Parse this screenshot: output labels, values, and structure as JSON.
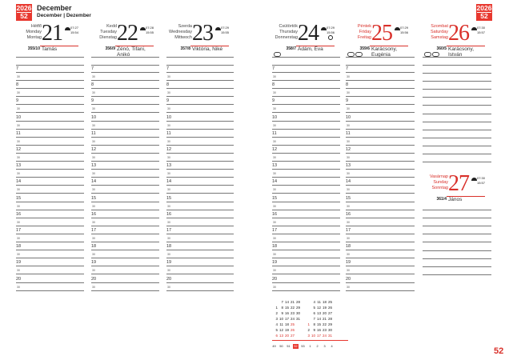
{
  "header": {
    "year": "2026",
    "week": "52",
    "month": "December",
    "month_translations": "December | Dezember"
  },
  "days": [
    {
      "names": [
        "Hétfő",
        "Monday",
        "Montag"
      ],
      "num": "21",
      "sunrise": "07:27",
      "sunset": "15:54",
      "daycount": "355/10",
      "nameday": "Tamás",
      "red": false
    },
    {
      "names": [
        "Kedd",
        "Tuesday",
        "Dienstag"
      ],
      "num": "22",
      "sunrise": "07:28",
      "sunset": "15:55",
      "daycount": "356/9",
      "nameday": "Zénó, Tifani, Anikó",
      "red": false
    },
    {
      "names": [
        "Szerda",
        "Wednesday",
        "Mittwoch"
      ],
      "num": "23",
      "sunrise": "07:29",
      "sunset": "15:55",
      "daycount": "357/8",
      "nameday": "Viktória, Niké",
      "red": false
    },
    {
      "names": [
        "Csütörtök",
        "Thursday",
        "Donnerstag"
      ],
      "num": "24",
      "sunrise": "07:29",
      "sunset": "15:56",
      "daycount": "358/7",
      "nameday": "Ádám, Éva",
      "red": false,
      "moon": "full-moon-icon"
    },
    {
      "names": [
        "Péntek",
        "Friday",
        "Freitag"
      ],
      "num": "25",
      "sunrise": "07:29",
      "sunset": "15:56",
      "daycount": "359/6",
      "nameday": "Karácsony, Eugénia",
      "red": true
    },
    {
      "names": [
        "Szombat",
        "Saturday",
        "Samstag"
      ],
      "num": "26",
      "sunrise": "07:30",
      "sunset": "15:57",
      "daycount": "360/5",
      "nameday": "Karácsony, István",
      "red": true
    },
    {
      "names": [
        "Vasárnap",
        "Sunday",
        "Sonntag"
      ],
      "num": "27",
      "sunrise": "07:30",
      "sunset": "15:57",
      "daycount": "361/4",
      "nameday": "János",
      "red": true
    }
  ],
  "hours": [
    "7",
    "8",
    "9",
    "10",
    "11",
    "12",
    "13",
    "14",
    "15",
    "16",
    "17",
    "18",
    "19",
    "20"
  ],
  "half_label": "30",
  "mini_calendar": {
    "december": [
      [
        "",
        "7",
        "14",
        "21",
        "28"
      ],
      [
        "1",
        "8",
        "15",
        "22",
        "29"
      ],
      [
        "2",
        "9",
        "16",
        "23",
        "30"
      ],
      [
        "3",
        "10",
        "17",
        "24",
        "31"
      ],
      [
        "4",
        "11",
        "18",
        "25",
        ""
      ],
      [
        "5",
        "12",
        "19",
        "26",
        ""
      ],
      [
        "6",
        "13",
        "20",
        "27",
        ""
      ]
    ],
    "january": [
      [
        "",
        "4",
        "11",
        "18",
        "25"
      ],
      [
        "",
        "5",
        "12",
        "19",
        "26"
      ],
      [
        "",
        "6",
        "13",
        "20",
        "27"
      ],
      [
        "",
        "7",
        "14",
        "21",
        "28"
      ],
      [
        "1",
        "8",
        "15",
        "22",
        "29"
      ],
      [
        "2",
        "9",
        "16",
        "23",
        "30"
      ],
      [
        "3",
        "10",
        "17",
        "24",
        "31"
      ]
    ],
    "weeks": [
      "49",
      "50",
      "51",
      "52",
      "53",
      "1",
      "2",
      "3",
      "4"
    ],
    "current_week": "52"
  },
  "page_number": "52",
  "accent": "#e8382f"
}
